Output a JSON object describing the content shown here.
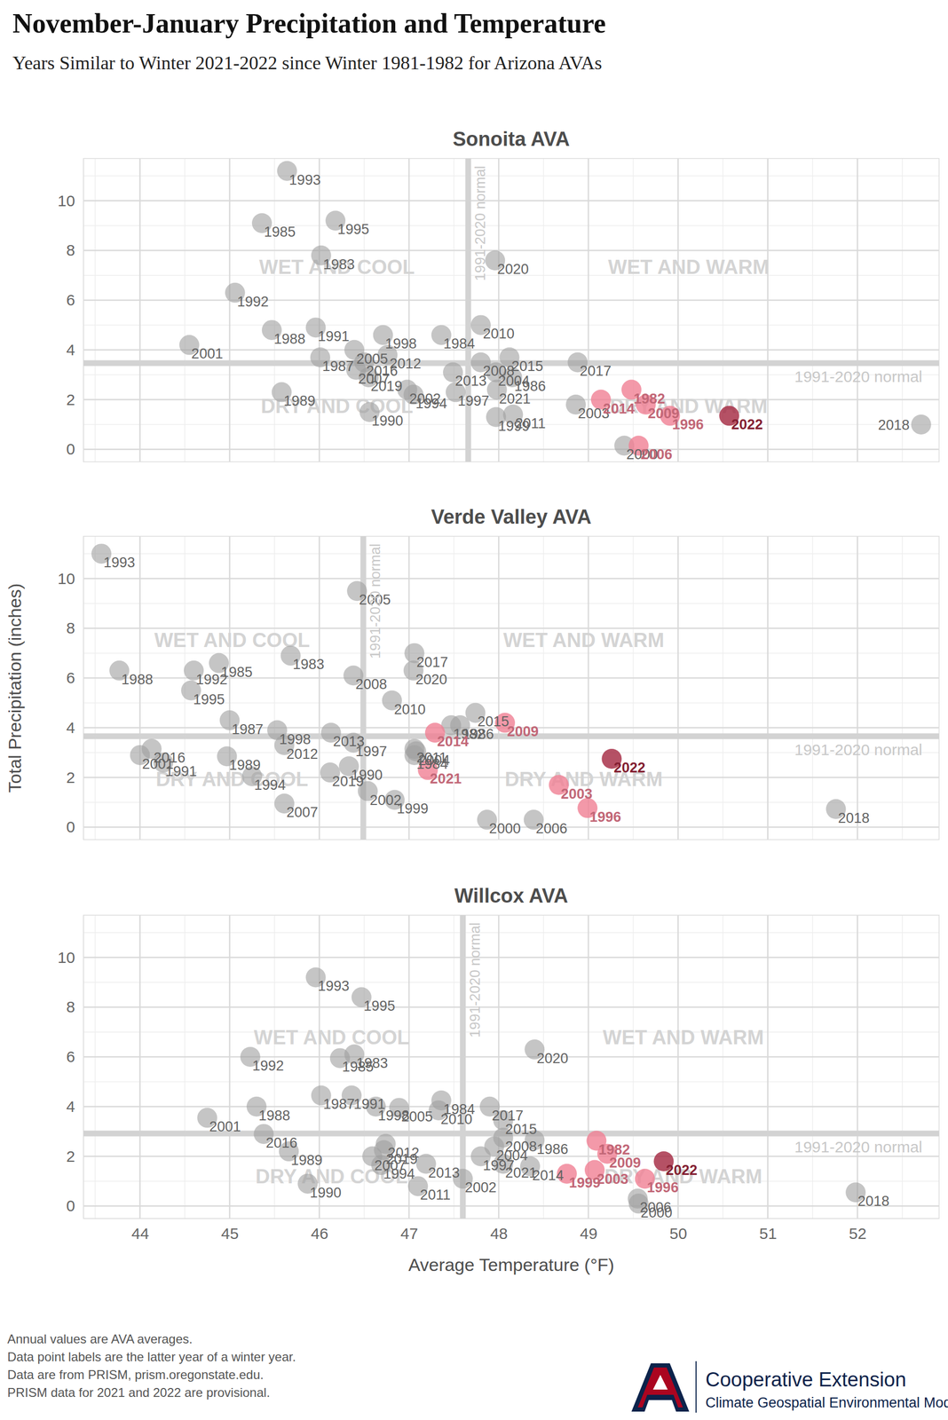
{
  "header": {
    "title": "November-January Precipitation and Temperature",
    "subtitle": "Years Similar to Winter 2021-2022 since Winter 1981-1982 for Arizona AVAs"
  },
  "chart_data": [
    {
      "type": "scatter",
      "title": "Sonoita AVA",
      "labels": [
        "1982",
        "1983",
        "1984",
        "1985",
        "1986",
        "1987",
        "1988",
        "1989",
        "1990",
        "1991",
        "1992",
        "1993",
        "1994",
        "1995",
        "1996",
        "1997",
        "1998",
        "1999",
        "2000",
        "2001",
        "2002",
        "2003",
        "2004",
        "2005",
        "2006",
        "2007",
        "2008",
        "2009",
        "2010",
        "2011",
        "2012",
        "2013",
        "2014",
        "2015",
        "2016",
        "2017",
        "2018",
        "2019",
        "2020",
        "2021",
        "2022"
      ],
      "x": [
        49.48,
        46.02,
        47.36,
        45.36,
        48.15,
        46.01,
        45.47,
        45.58,
        46.56,
        45.96,
        45.06,
        45.64,
        47.05,
        46.18,
        49.91,
        47.52,
        46.71,
        47.97,
        49.4,
        44.55,
        46.98,
        48.86,
        47.97,
        46.39,
        49.56,
        46.41,
        47.8,
        49.64,
        47.8,
        48.16,
        46.76,
        47.49,
        49.14,
        48.12,
        46.5,
        48.88,
        52.71,
        46.55,
        47.96,
        47.98,
        50.57
      ],
      "y": [
        2.4,
        7.8,
        4.6,
        9.1,
        2.9,
        3.7,
        4.8,
        2.3,
        1.5,
        4.9,
        6.3,
        11.2,
        2.2,
        9.2,
        1.35,
        2.3,
        4.6,
        1.3,
        0.15,
        4.2,
        2.4,
        1.8,
        3.1,
        4.0,
        0.15,
        3.2,
        3.5,
        1.8,
        5.0,
        1.4,
        3.8,
        3.1,
        2.0,
        3.7,
        3.5,
        3.5,
        1.0,
        2.9,
        7.6,
        2.4,
        1.35
      ],
      "colors": [
        "#f07f93",
        "#9e9e9e",
        "#9e9e9e",
        "#9e9e9e",
        "#9e9e9e",
        "#9e9e9e",
        "#9e9e9e",
        "#9e9e9e",
        "#9e9e9e",
        "#9e9e9e",
        "#9e9e9e",
        "#9e9e9e",
        "#9e9e9e",
        "#9e9e9e",
        "#f07f93",
        "#9e9e9e",
        "#9e9e9e",
        "#9e9e9e",
        "#9e9e9e",
        "#9e9e9e",
        "#9e9e9e",
        "#9e9e9e",
        "#9e9e9e",
        "#9e9e9e",
        "#f07f93",
        "#9e9e9e",
        "#9e9e9e",
        "#f07f93",
        "#9e9e9e",
        "#9e9e9e",
        "#9e9e9e",
        "#9e9e9e",
        "#f07f93",
        "#9e9e9e",
        "#9e9e9e",
        "#9e9e9e",
        "#9e9e9e",
        "#9e9e9e",
        "#9e9e9e",
        "#9e9e9e",
        "#a3263e"
      ],
      "xlim": [
        43.37,
        52.91
      ],
      "ylim": [
        -0.5,
        11.7
      ],
      "xticks": [
        44,
        45,
        46,
        47,
        48,
        49,
        50,
        51,
        52
      ],
      "yticks": [
        0,
        2,
        4,
        6,
        8,
        10
      ],
      "grid": true,
      "tick_labels": "y",
      "x_normal": 47.66,
      "y_normal": 3.47,
      "normal_label": "1991-2020 normal",
      "quadrant_labels": [
        "WET AND COOL",
        "WET AND WARM",
        "DRY AND COOL",
        "DRY AND WARM"
      ]
    },
    {
      "type": "scatter",
      "title": "Verde Valley AVA",
      "labels": [
        "1982",
        "1983",
        "1984",
        "1985",
        "1986",
        "1987",
        "1988",
        "1989",
        "1990",
        "1991",
        "1992",
        "1993",
        "1994",
        "1995",
        "1996",
        "1997",
        "1998",
        "1999",
        "2000",
        "2001",
        "2002",
        "2003",
        "2004",
        "2005",
        "2006",
        "2007",
        "2008",
        "2009",
        "2010",
        "2011",
        "2012",
        "2013",
        "2014",
        "2015",
        "2016",
        "2017",
        "2018",
        "2019",
        "2020",
        "2021",
        "2022"
      ],
      "x": [
        47.47,
        45.68,
        47.06,
        44.88,
        47.57,
        45.0,
        43.77,
        44.97,
        46.33,
        44.26,
        44.6,
        43.57,
        45.25,
        44.57,
        48.99,
        46.38,
        45.53,
        46.84,
        47.87,
        44.0,
        46.54,
        48.67,
        47.08,
        46.42,
        48.39,
        45.61,
        46.38,
        48.07,
        46.81,
        47.06,
        45.61,
        46.13,
        47.29,
        47.74,
        44.13,
        47.06,
        51.76,
        46.12,
        47.05,
        47.21,
        49.26
      ],
      "y": [
        4.1,
        6.9,
        2.9,
        6.6,
        4.1,
        4.3,
        6.3,
        2.85,
        2.45,
        2.6,
        6.3,
        11.0,
        2.05,
        5.5,
        0.77,
        3.4,
        3.9,
        1.1,
        0.3,
        2.9,
        1.45,
        1.7,
        3.05,
        9.5,
        0.3,
        0.95,
        6.1,
        4.2,
        5.1,
        3.15,
        3.3,
        3.8,
        3.8,
        4.6,
        3.15,
        7.0,
        0.73,
        2.2,
        6.3,
        2.3,
        2.75
      ],
      "colors": [
        "#9e9e9e",
        "#9e9e9e",
        "#9e9e9e",
        "#9e9e9e",
        "#9e9e9e",
        "#9e9e9e",
        "#9e9e9e",
        "#9e9e9e",
        "#9e9e9e",
        "#9e9e9e",
        "#9e9e9e",
        "#9e9e9e",
        "#9e9e9e",
        "#9e9e9e",
        "#f07f93",
        "#9e9e9e",
        "#9e9e9e",
        "#9e9e9e",
        "#9e9e9e",
        "#9e9e9e",
        "#9e9e9e",
        "#f07f93",
        "#9e9e9e",
        "#9e9e9e",
        "#9e9e9e",
        "#9e9e9e",
        "#9e9e9e",
        "#f07f93",
        "#9e9e9e",
        "#9e9e9e",
        "#9e9e9e",
        "#9e9e9e",
        "#f07f93",
        "#9e9e9e",
        "#9e9e9e",
        "#9e9e9e",
        "#9e9e9e",
        "#9e9e9e",
        "#9e9e9e",
        "#f07f93",
        "#a3263e"
      ],
      "xlim": [
        43.37,
        52.91
      ],
      "ylim": [
        -0.5,
        11.7
      ],
      "xticks": [
        44,
        45,
        46,
        47,
        48,
        49,
        50,
        51,
        52
      ],
      "yticks": [
        0,
        2,
        4,
        6,
        8,
        10
      ],
      "grid": true,
      "tick_labels": "y",
      "x_normal": 46.49,
      "y_normal": 3.66,
      "normal_label": "1991-2020 normal",
      "quadrant_labels": [
        "WET AND COOL",
        "WET AND WARM",
        "DRY AND COOL",
        "DRY AND WARM"
      ],
      "y_label": "Total Precipitation (inches)"
    },
    {
      "type": "scatter",
      "title": "Willcox AVA",
      "labels": [
        "1982",
        "1983",
        "1984",
        "1985",
        "1986",
        "1987",
        "1988",
        "1989",
        "1990",
        "1991",
        "1992",
        "1993",
        "1994",
        "1995",
        "1996",
        "1997",
        "1998",
        "1999",
        "2000",
        "2001",
        "2002",
        "2003",
        "2004",
        "2005",
        "2006",
        "2007",
        "2008",
        "2009",
        "2010",
        "2011",
        "2012",
        "2013",
        "2014",
        "2015",
        "2016",
        "2017",
        "2018",
        "2019",
        "2020",
        "2021",
        "2022"
      ],
      "x": [
        49.09,
        46.39,
        47.36,
        46.23,
        48.4,
        46.02,
        45.3,
        45.66,
        45.87,
        46.36,
        45.23,
        45.96,
        46.69,
        46.47,
        49.63,
        47.8,
        46.63,
        48.76,
        49.56,
        44.75,
        47.6,
        49.07,
        47.95,
        46.89,
        49.55,
        46.59,
        48.05,
        49.21,
        47.33,
        47.1,
        46.74,
        47.19,
        48.35,
        48.05,
        45.38,
        47.9,
        51.98,
        46.72,
        48.4,
        48.05,
        49.84
      ],
      "y": [
        2.63,
        6.1,
        4.25,
        5.95,
        2.65,
        4.45,
        4.0,
        2.2,
        0.9,
        4.45,
        6.0,
        9.2,
        1.65,
        8.4,
        1.1,
        2.0,
        4.0,
        1.3,
        0.1,
        3.55,
        1.1,
        1.45,
        2.4,
        3.95,
        0.3,
        2.0,
        2.75,
        2.1,
        3.85,
        0.8,
        2.5,
        1.7,
        1.6,
        3.45,
        2.9,
        4.0,
        0.55,
        2.25,
        6.3,
        1.7,
        1.8
      ],
      "colors": [
        "#f07f93",
        "#9e9e9e",
        "#9e9e9e",
        "#9e9e9e",
        "#9e9e9e",
        "#9e9e9e",
        "#9e9e9e",
        "#9e9e9e",
        "#9e9e9e",
        "#9e9e9e",
        "#9e9e9e",
        "#9e9e9e",
        "#9e9e9e",
        "#9e9e9e",
        "#f07f93",
        "#9e9e9e",
        "#9e9e9e",
        "#f07f93",
        "#9e9e9e",
        "#9e9e9e",
        "#9e9e9e",
        "#f07f93",
        "#9e9e9e",
        "#9e9e9e",
        "#9e9e9e",
        "#9e9e9e",
        "#9e9e9e",
        "#f07f93",
        "#9e9e9e",
        "#9e9e9e",
        "#9e9e9e",
        "#9e9e9e",
        "#9e9e9e",
        "#9e9e9e",
        "#9e9e9e",
        "#9e9e9e",
        "#9e9e9e",
        "#9e9e9e",
        "#9e9e9e",
        "#9e9e9e",
        "#a3263e"
      ],
      "xlim": [
        43.37,
        52.91
      ],
      "ylim": [
        -0.5,
        11.7
      ],
      "xticks": [
        44,
        45,
        46,
        47,
        48,
        49,
        50,
        51,
        52
      ],
      "yticks": [
        0,
        2,
        4,
        6,
        8,
        10
      ],
      "grid": true,
      "x_normal": 47.6,
      "y_normal": 2.92,
      "normal_label": "1991-2020 normal",
      "quadrant_labels": [
        "WET AND COOL",
        "WET AND WARM",
        "DRY AND COOL",
        "DRY AND WARM"
      ],
      "x_label": "Average Temperature (°F)"
    }
  ],
  "footer": {
    "notes": [
      "Annual values are AVA averages.",
      "Data point labels are the latter year of a winter year.",
      "Data are from PRISM, prism.oregonstate.edu.",
      "PRISM data for 2021 and 2022 are provisional."
    ],
    "logo": "Cooperative Extension",
    "logo_sub": "Climate Geospatial Environmental Modeling"
  }
}
